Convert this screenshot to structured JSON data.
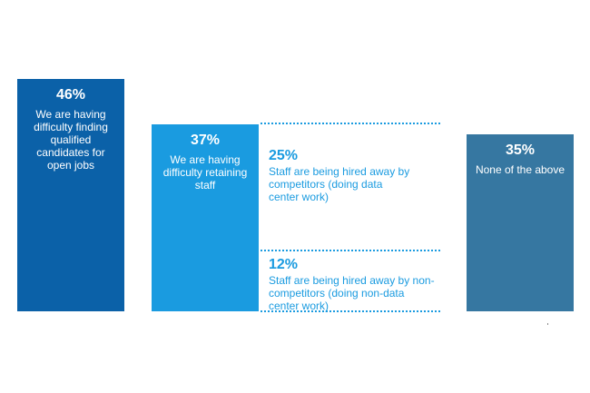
{
  "colors": {
    "dark_blue": "#0b61a8",
    "light_blue": "#1a9be0",
    "steel_blue": "#3677a1"
  },
  "chart_data": {
    "type": "bar",
    "categories": [
      "We are having difficulty finding qualified candidates for open jobs",
      "We are having difficulty retaining staff",
      "None of the above"
    ],
    "values": [
      46,
      37,
      35
    ],
    "value_labels": [
      "46%",
      "37%",
      "35%"
    ],
    "ylim": [
      0,
      46
    ],
    "breakdown": [
      {
        "value": 25,
        "value_label": "25%",
        "label": "Staff are being hired away by competitors (doing data center work)"
      },
      {
        "value": 12,
        "value_label": "12%",
        "label": "Staff are being hired away by non-competitors (doing non-data center work)"
      }
    ],
    "title": "",
    "xlabel": "",
    "ylabel": ""
  }
}
